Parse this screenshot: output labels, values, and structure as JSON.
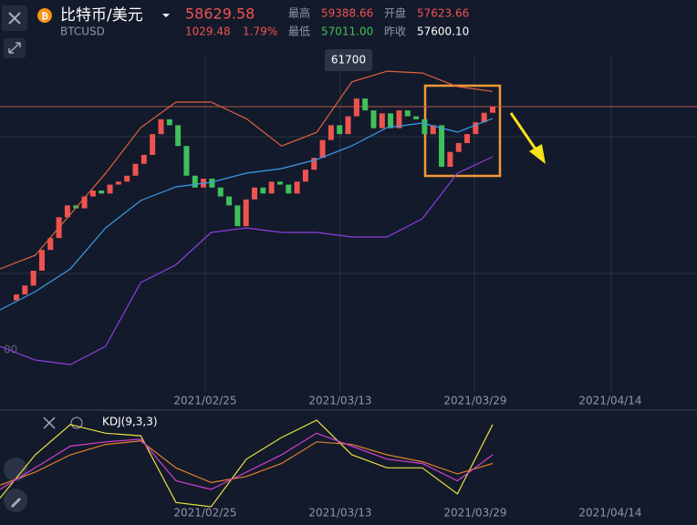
{
  "header": {
    "name": "比特币/美元",
    "symbol": "BTCUSD",
    "price": "58629.58",
    "change": "1029.48",
    "change_pct": "1.79%",
    "high_label": "最高",
    "high": "59388.66",
    "open_label": "开盘",
    "open": "57623.66",
    "low_label": "最低",
    "low": "57011.00",
    "prev_label": "昨收",
    "prev": "57600.10"
  },
  "chart_data": {
    "type": "candlestick",
    "peak_label": "61700",
    "axis_fragment": "00",
    "dates": [
      "2021/02/25",
      "2021/03/13",
      "2021/03/29",
      "2021/04/14"
    ],
    "open": [
      26000,
      27000,
      28500,
      31000,
      34500,
      36500,
      40000,
      42000,
      41500,
      43500,
      44500,
      44000,
      45500,
      46000,
      47000,
      49000,
      50500,
      54000,
      56500,
      55500,
      52000,
      47000,
      45000,
      46500,
      45000,
      43500,
      42000,
      38500,
      43000,
      45000,
      44000,
      46000,
      45500,
      44000,
      46000,
      48000,
      50000,
      53000,
      55500,
      54000,
      57000,
      60000,
      58000,
      55000,
      57500,
      55000,
      58000,
      57000,
      56500,
      54000,
      55500,
      48500,
      51000,
      52500,
      54000,
      56000,
      57600
    ],
    "close": [
      27000,
      28500,
      31000,
      34500,
      36500,
      40000,
      42000,
      41500,
      43500,
      44500,
      44000,
      45500,
      46000,
      47000,
      49000,
      50500,
      54000,
      56500,
      55500,
      52000,
      47000,
      45000,
      46500,
      45000,
      43500,
      42000,
      38500,
      43000,
      45000,
      44000,
      46000,
      45500,
      44000,
      46000,
      48000,
      50000,
      53000,
      55500,
      54000,
      57000,
      60000,
      58000,
      55000,
      57500,
      55000,
      58000,
      57000,
      56500,
      54000,
      55500,
      48500,
      51000,
      52500,
      54000,
      56000,
      57600,
      58630
    ],
    "boll_upper": [
      31300,
      33600,
      40500,
      47400,
      55100,
      59400,
      59400,
      56600,
      52000,
      54300,
      62800,
      64600,
      64300,
      62000,
      61200
    ],
    "boll_mid": [
      24400,
      27470,
      31300,
      38210,
      42820,
      45120,
      45890,
      47420,
      48190,
      49730,
      52030,
      55100,
      55870,
      54330,
      56630
    ],
    "boll_lower": [
      18260,
      15960,
      15190,
      18260,
      29000,
      32000,
      37450,
      38200,
      37450,
      37450,
      36680,
      36680,
      39750,
      47420,
      50180
    ],
    "kdj_title": "KDJ(9,3,3)",
    "k": [
      20,
      45,
      70,
      75,
      78,
      30,
      20,
      40,
      60,
      85,
      70,
      55,
      50,
      30,
      60
    ],
    "d": [
      25,
      40,
      60,
      72,
      76,
      45,
      28,
      35,
      50,
      75,
      72,
      60,
      52,
      38,
      50
    ],
    "j": [
      10,
      60,
      95,
      85,
      82,
      5,
      0,
      55,
      80,
      100,
      60,
      45,
      45,
      15,
      95
    ]
  }
}
